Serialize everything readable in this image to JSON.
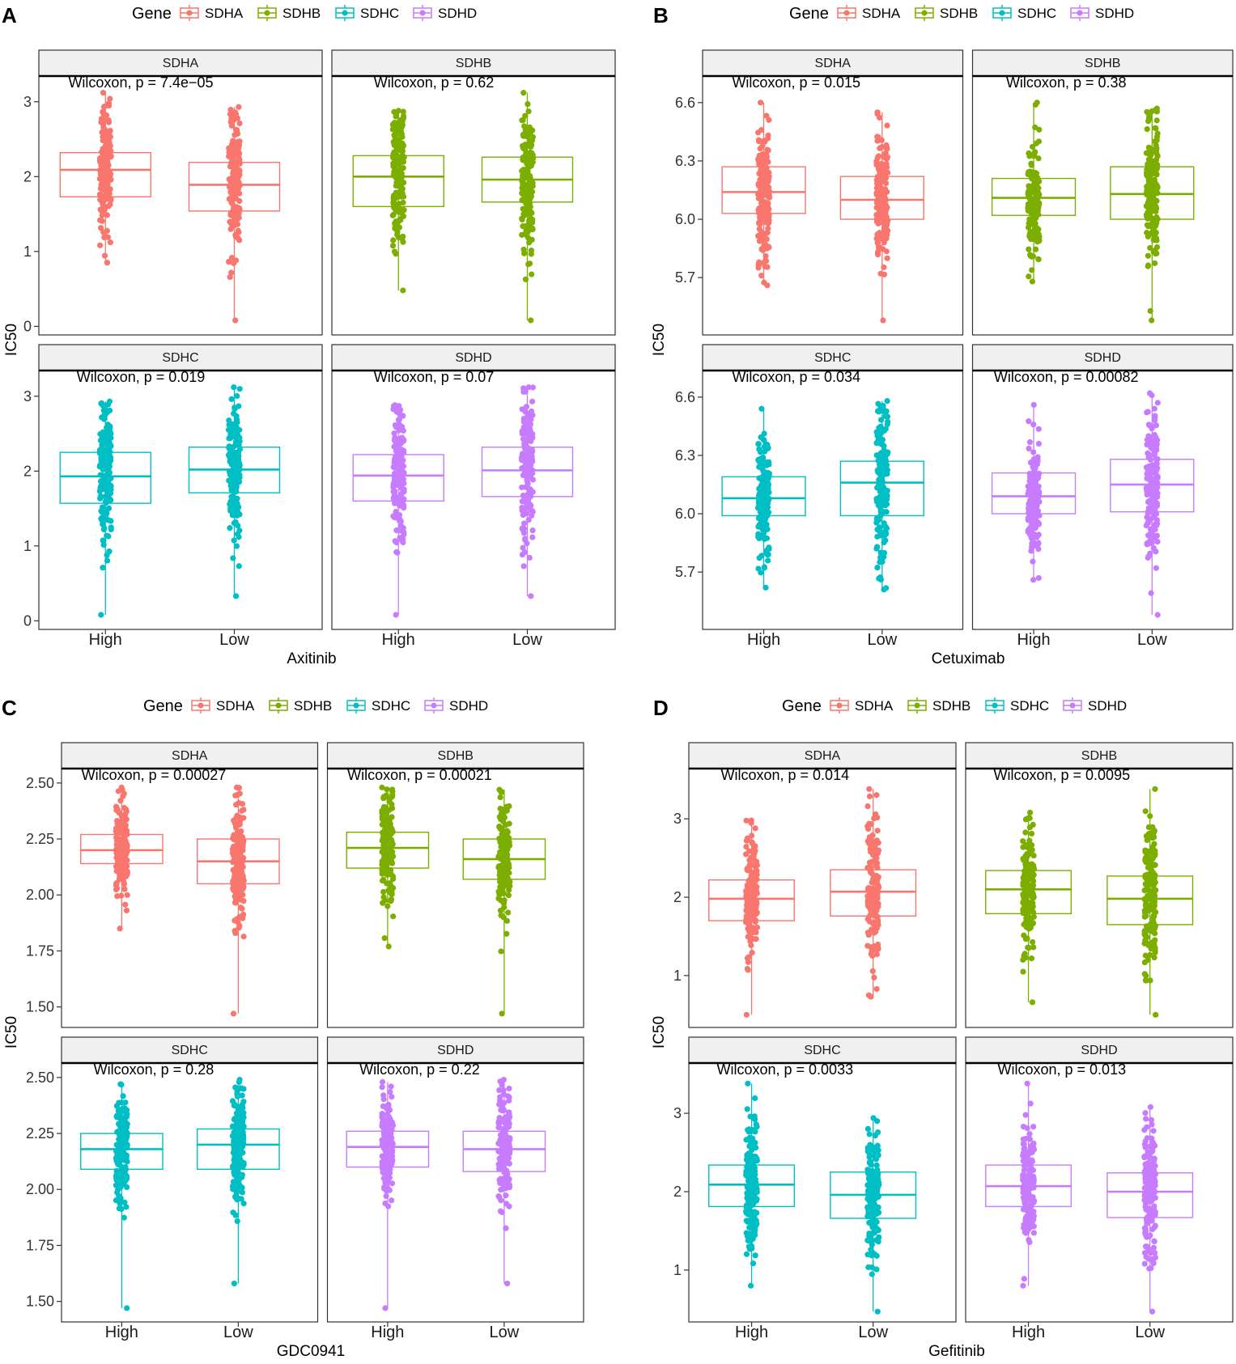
{
  "legend": {
    "title": "Gene",
    "genes": [
      "SDHA",
      "SDHB",
      "SDHC",
      "SDHD"
    ],
    "colors": {
      "SDHA": "#F8766D",
      "SDHB": "#7CAE00",
      "SDHC": "#00BFC4",
      "SDHD": "#C77CFF"
    }
  },
  "chart_data": [
    {
      "type": "boxplot",
      "panel_label": "A",
      "drug": "Axitinib",
      "xlabel": "Axitinib",
      "ylabel": "IC50",
      "categories": [
        "High",
        "Low"
      ],
      "ylim": [
        -0.05,
        3.3
      ],
      "yticks": [
        "0",
        "1",
        "2",
        "3"
      ],
      "ytick_values": [
        0,
        1,
        2,
        3
      ],
      "facets": [
        {
          "gene": "SDHA",
          "pvalue": "Wilcoxon, p = 7.4e−05",
          "boxes": [
            {
              "group": "High",
              "min": 0.85,
              "q1": 1.73,
              "median": 2.09,
              "q3": 2.32,
              "max": 3.12
            },
            {
              "group": "Low",
              "min": 0.08,
              "q1": 1.54,
              "median": 1.89,
              "q3": 2.19,
              "max": 2.93
            }
          ]
        },
        {
          "gene": "SDHB",
          "pvalue": "Wilcoxon, p = 0.62",
          "boxes": [
            {
              "group": "High",
              "min": 0.48,
              "q1": 1.6,
              "median": 2.0,
              "q3": 2.28,
              "max": 2.88
            },
            {
              "group": "Low",
              "min": 0.08,
              "q1": 1.66,
              "median": 1.96,
              "q3": 2.26,
              "max": 3.12
            }
          ]
        },
        {
          "gene": "SDHC",
          "pvalue": "Wilcoxon, p = 0.019",
          "boxes": [
            {
              "group": "High",
              "min": 0.08,
              "q1": 1.57,
              "median": 1.93,
              "q3": 2.25,
              "max": 2.93
            },
            {
              "group": "Low",
              "min": 0.33,
              "q1": 1.71,
              "median": 2.02,
              "q3": 2.32,
              "max": 3.12
            }
          ]
        },
        {
          "gene": "SDHD",
          "pvalue": "Wilcoxon, p = 0.07",
          "boxes": [
            {
              "group": "High",
              "min": 0.08,
              "q1": 1.6,
              "median": 1.94,
              "q3": 2.22,
              "max": 2.88
            },
            {
              "group": "Low",
              "min": 0.33,
              "q1": 1.66,
              "median": 2.01,
              "q3": 2.32,
              "max": 3.12
            }
          ]
        }
      ]
    },
    {
      "type": "boxplot",
      "panel_label": "B",
      "drug": "Cetuximab",
      "xlabel": "Cetuximab",
      "ylabel": "IC50",
      "categories": [
        "High",
        "Low"
      ],
      "ylim": [
        5.43,
        6.72
      ],
      "yticks": [
        "5.7",
        "6.0",
        "6.3",
        "6.6"
      ],
      "ytick_values": [
        5.7,
        6.0,
        6.3,
        6.6
      ],
      "facets": [
        {
          "gene": "SDHA",
          "pvalue": "Wilcoxon, p = 0.015",
          "boxes": [
            {
              "group": "High",
              "min": 5.66,
              "q1": 6.03,
              "median": 6.14,
              "q3": 6.27,
              "max": 6.6
            },
            {
              "group": "Low",
              "min": 5.48,
              "q1": 6.0,
              "median": 6.1,
              "q3": 6.22,
              "max": 6.55
            }
          ]
        },
        {
          "gene": "SDHB",
          "pvalue": "Wilcoxon, p = 0.38",
          "boxes": [
            {
              "group": "High",
              "min": 5.68,
              "q1": 6.02,
              "median": 6.11,
              "q3": 6.21,
              "max": 6.6
            },
            {
              "group": "Low",
              "min": 5.48,
              "q1": 6.0,
              "median": 6.13,
              "q3": 6.27,
              "max": 6.57
            }
          ]
        },
        {
          "gene": "SDHC",
          "pvalue": "Wilcoxon, p = 0.034",
          "boxes": [
            {
              "group": "High",
              "min": 5.62,
              "q1": 5.99,
              "median": 6.08,
              "q3": 6.19,
              "max": 6.54
            },
            {
              "group": "Low",
              "min": 5.61,
              "q1": 5.99,
              "median": 6.16,
              "q3": 6.27,
              "max": 6.58
            }
          ]
        },
        {
          "gene": "SDHD",
          "pvalue": "Wilcoxon, p = 0.00082",
          "boxes": [
            {
              "group": "High",
              "min": 5.66,
              "q1": 6.0,
              "median": 6.09,
              "q3": 6.21,
              "max": 6.56
            },
            {
              "group": "Low",
              "min": 5.48,
              "q1": 6.01,
              "median": 6.15,
              "q3": 6.28,
              "max": 6.62
            }
          ]
        }
      ]
    },
    {
      "type": "boxplot",
      "panel_label": "C",
      "drug": "GDC0941",
      "xlabel": "GDC0941",
      "ylabel": "IC50",
      "categories": [
        "High",
        "Low"
      ],
      "ylim": [
        1.43,
        2.55
      ],
      "yticks": [
        "1.50",
        "1.75",
        "2.00",
        "2.25",
        "2.50"
      ],
      "ytick_values": [
        1.5,
        1.75,
        2.0,
        2.25,
        2.5
      ],
      "facets": [
        {
          "gene": "SDHA",
          "pvalue": "Wilcoxon, p = 0.00027",
          "boxes": [
            {
              "group": "High",
              "min": 1.85,
              "q1": 2.14,
              "median": 2.2,
              "q3": 2.27,
              "max": 2.48
            },
            {
              "group": "Low",
              "min": 1.47,
              "q1": 2.05,
              "median": 2.15,
              "q3": 2.25,
              "max": 2.48
            }
          ]
        },
        {
          "gene": "SDHB",
          "pvalue": "Wilcoxon, p = 0.00021",
          "boxes": [
            {
              "group": "High",
              "min": 1.77,
              "q1": 2.12,
              "median": 2.21,
              "q3": 2.28,
              "max": 2.48
            },
            {
              "group": "Low",
              "min": 1.47,
              "q1": 2.07,
              "median": 2.16,
              "q3": 2.25,
              "max": 2.47
            }
          ]
        },
        {
          "gene": "SDHC",
          "pvalue": "Wilcoxon, p = 0.28",
          "boxes": [
            {
              "group": "High",
              "min": 1.47,
              "q1": 2.09,
              "median": 2.18,
              "q3": 2.25,
              "max": 2.47
            },
            {
              "group": "Low",
              "min": 1.58,
              "q1": 2.09,
              "median": 2.2,
              "q3": 2.27,
              "max": 2.49
            }
          ]
        },
        {
          "gene": "SDHD",
          "pvalue": "Wilcoxon, p = 0.22",
          "boxes": [
            {
              "group": "High",
              "min": 1.47,
              "q1": 2.1,
              "median": 2.19,
              "q3": 2.26,
              "max": 2.48
            },
            {
              "group": "Low",
              "min": 1.58,
              "q1": 2.08,
              "median": 2.18,
              "q3": 2.26,
              "max": 2.49
            }
          ]
        }
      ]
    },
    {
      "type": "boxplot",
      "panel_label": "D",
      "drug": "Gefitinib",
      "xlabel": "Gefitinib",
      "ylabel": "IC50",
      "categories": [
        "High",
        "Low"
      ],
      "ylim": [
        0.4,
        3.6
      ],
      "yticks": [
        "1",
        "2",
        "3"
      ],
      "ytick_values": [
        1,
        2,
        3
      ],
      "facets": [
        {
          "gene": "SDHA",
          "pvalue": "Wilcoxon, p = 0.014",
          "boxes": [
            {
              "group": "High",
              "min": 0.5,
              "q1": 1.7,
              "median": 1.98,
              "q3": 2.22,
              "max": 2.98
            },
            {
              "group": "Low",
              "min": 0.73,
              "q1": 1.76,
              "median": 2.07,
              "q3": 2.35,
              "max": 3.38
            }
          ]
        },
        {
          "gene": "SDHB",
          "pvalue": "Wilcoxon, p = 0.0095",
          "boxes": [
            {
              "group": "High",
              "min": 0.66,
              "q1": 1.79,
              "median": 2.1,
              "q3": 2.34,
              "max": 3.08
            },
            {
              "group": "Low",
              "min": 0.5,
              "q1": 1.65,
              "median": 1.98,
              "q3": 2.27,
              "max": 3.38
            }
          ]
        },
        {
          "gene": "SDHC",
          "pvalue": "Wilcoxon, p = 0.0033",
          "boxes": [
            {
              "group": "High",
              "min": 0.8,
              "q1": 1.81,
              "median": 2.09,
              "q3": 2.34,
              "max": 3.38
            },
            {
              "group": "Low",
              "min": 0.47,
              "q1": 1.66,
              "median": 1.96,
              "q3": 2.25,
              "max": 2.94
            }
          ]
        },
        {
          "gene": "SDHD",
          "pvalue": "Wilcoxon, p = 0.013",
          "boxes": [
            {
              "group": "High",
              "min": 0.8,
              "q1": 1.81,
              "median": 2.07,
              "q3": 2.34,
              "max": 3.38
            },
            {
              "group": "Low",
              "min": 0.47,
              "q1": 1.67,
              "median": 2.0,
              "q3": 2.24,
              "max": 3.08
            }
          ]
        }
      ]
    }
  ]
}
